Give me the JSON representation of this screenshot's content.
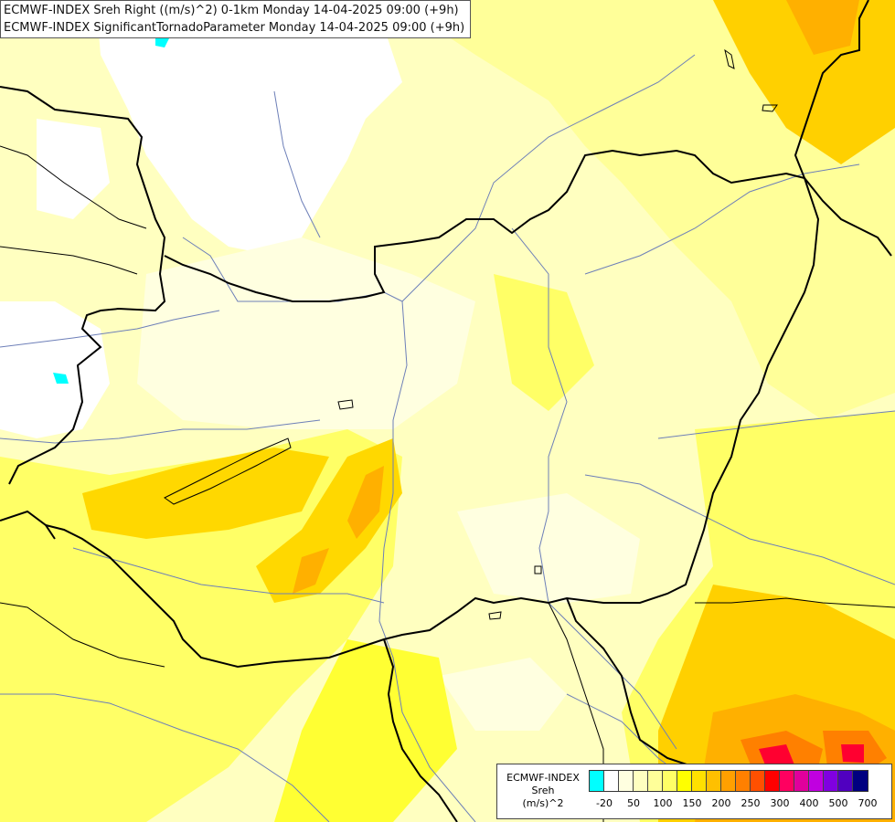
{
  "title": {
    "line1": "ECMWF-INDEX Sreh Right ((m/s)^2) 0-1km Monday 14-04-2025 09:00 (+9h)",
    "line2": "ECMWF-INDEX SignificantTornadoParameter Monday 14-04-2025 09:00 (+9h)"
  },
  "legend": {
    "source": "ECMWF-INDEX",
    "variable": "Sreh",
    "unit": "(m/s)^2",
    "colors": [
      "#00ffff",
      "#ffffff",
      "#ffffe0",
      "#ffffc0",
      "#ffff99",
      "#ffff66",
      "#ffff00",
      "#ffe000",
      "#ffc000",
      "#ffa000",
      "#ff8000",
      "#ff5000",
      "#ff0000",
      "#ff0060",
      "#e0009c",
      "#c000e0",
      "#8000e0",
      "#5000c0",
      "#000080"
    ],
    "ticks": [
      "-20",
      "50",
      "100",
      "150",
      "200",
      "250",
      "300",
      "400",
      "500",
      "700"
    ]
  },
  "colors": {
    "background": "#ffffc0",
    "border": "#000000",
    "river": "#6d7fb8"
  }
}
